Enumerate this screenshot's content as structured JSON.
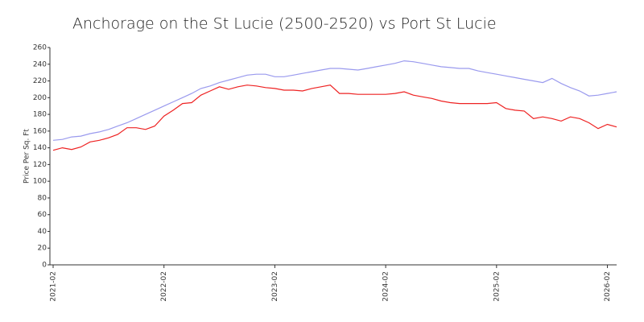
{
  "chart_data": {
    "type": "line",
    "title": "Anchorage on the St Lucie (2500-2520) vs Port St Lucie",
    "y_label": "Price Per Sq. Ft",
    "x": [
      "2021-02",
      "2021-03",
      "2021-04",
      "2021-05",
      "2021-06",
      "2021-07",
      "2021-08",
      "2021-09",
      "2021-10",
      "2021-11",
      "2021-12",
      "2022-01",
      "2022-02",
      "2022-03",
      "2022-04",
      "2022-05",
      "2022-06",
      "2022-07",
      "2022-08",
      "2022-09",
      "2022-10",
      "2022-11",
      "2022-12",
      "2023-01",
      "2023-02",
      "2023-03",
      "2023-04",
      "2023-05",
      "2023-06",
      "2023-07",
      "2023-08",
      "2023-09",
      "2023-10",
      "2023-11",
      "2023-12",
      "2024-01",
      "2024-02",
      "2024-03",
      "2024-04",
      "2024-05",
      "2024-06",
      "2024-07",
      "2024-08",
      "2024-09",
      "2024-10",
      "2024-11",
      "2024-12",
      "2025-01",
      "2025-02",
      "2025-03",
      "2025-04",
      "2025-05",
      "2025-06",
      "2025-07",
      "2025-08",
      "2025-09",
      "2025-10",
      "2025-11",
      "2025-12",
      "2026-01",
      "2026-02",
      "2026-03"
    ],
    "xticks": [
      "2021-02",
      "2022-02",
      "2023-02",
      "2024-02",
      "2025-02",
      "2026-02"
    ],
    "series": [
      {
        "color": "#9a9aee",
        "values": [
          149,
          150,
          153,
          154,
          157,
          159,
          162,
          166,
          170,
          175,
          180,
          185,
          190,
          195,
          200,
          205,
          211,
          214,
          218,
          221,
          224,
          227,
          228,
          228,
          225,
          225,
          227,
          229,
          231,
          233,
          235,
          235,
          234,
          233,
          235,
          237,
          239,
          241,
          244,
          243,
          241,
          239,
          237,
          236,
          235,
          235,
          232,
          230,
          228,
          226,
          224,
          222,
          220,
          218,
          223,
          217,
          212,
          208,
          202,
          203,
          205,
          207
        ]
      },
      {
        "color": "#ee2222",
        "values": [
          137,
          140,
          138,
          141,
          147,
          149,
          152,
          156,
          164,
          164,
          162,
          166,
          178,
          185,
          193,
          194,
          203,
          208,
          213,
          210,
          213,
          215,
          214,
          212,
          211,
          209,
          209,
          208,
          211,
          213,
          215,
          205,
          205,
          204,
          204,
          204,
          204,
          205,
          207,
          203,
          201,
          199,
          196,
          194,
          193,
          193,
          193,
          193,
          194,
          187,
          185,
          184,
          175,
          177,
          175,
          172,
          177,
          175,
          170,
          163,
          168,
          165
        ]
      }
    ],
    "ylim": [
      0,
      260
    ],
    "yticks": [
      0,
      20,
      40,
      60,
      80,
      100,
      120,
      140,
      160,
      180,
      200,
      220,
      240,
      260
    ]
  }
}
